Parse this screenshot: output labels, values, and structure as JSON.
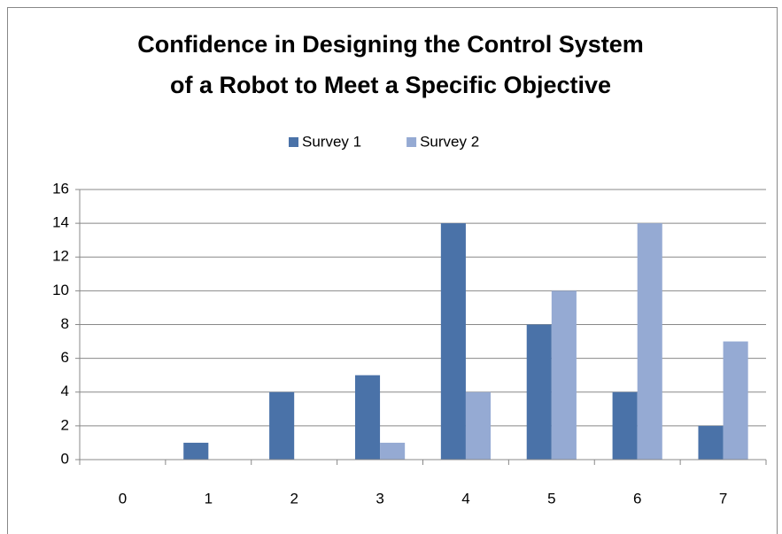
{
  "chart_data": {
    "type": "bar",
    "title": [
      "Confidence in Designing the Control System",
      "of a Robot to Meet a Specific Objective"
    ],
    "categories": [
      "0",
      "1",
      "2",
      "3",
      "4",
      "5",
      "6",
      "7"
    ],
    "series": [
      {
        "name": "Survey 1",
        "color": "#4a72a8",
        "values": [
          0,
          1,
          4,
          5,
          14,
          8,
          4,
          2
        ]
      },
      {
        "name": "Survey 2",
        "color": "#95aad3",
        "values": [
          0,
          0,
          0,
          1,
          4,
          10,
          14,
          7
        ]
      }
    ],
    "ylim": [
      0,
      16
    ],
    "yticks": [
      0,
      2,
      4,
      6,
      8,
      10,
      12,
      14,
      16
    ],
    "grid": true,
    "legend": "top"
  }
}
